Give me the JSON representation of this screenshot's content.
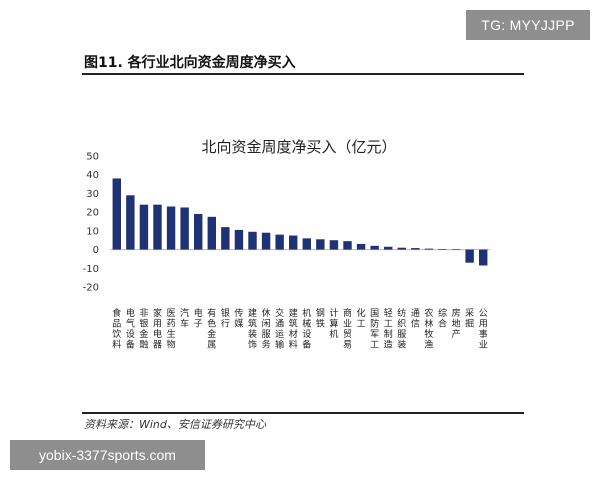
{
  "watermark_top": "TG: MYYJJPP",
  "figure_title": "图11. 各行业北向资金周度净买入",
  "source": "资料来源：Wind、安信证券研究中心",
  "watermark_bottom": "yobix-3377sports.com",
  "colors": {
    "bar": "#1f3374",
    "zero_line": "#bbbbbb"
  },
  "chart_data": {
    "type": "bar",
    "title": "北向资金周度净买入（亿元）",
    "xlabel": "",
    "ylabel": "",
    "ylim": [
      -20,
      50
    ],
    "yticks": [
      50,
      40,
      30,
      20,
      10,
      0,
      -10,
      -20
    ],
    "grid": false,
    "categories": [
      "食品饮料",
      "电气设备",
      "非银金融",
      "家用电器",
      "医药生物",
      "汽车",
      "电子",
      "有色金属",
      "银行",
      "传媒",
      "建筑装饰",
      "休闲服务",
      "交通运输",
      "建筑材料",
      "机械设备",
      "钢铁",
      "计算机",
      "商业贸易",
      "化工",
      "国防军工",
      "轻工制造",
      "纺织服装",
      "通信",
      "农林牧渔",
      "综合",
      "房地产",
      "采掘",
      "公用事业"
    ],
    "values": [
      38,
      29,
      24,
      24,
      23,
      22.5,
      19,
      17.5,
      12,
      10.5,
      9.5,
      9,
      8,
      7.5,
      6,
      5.5,
      5,
      4.5,
      3,
      2,
      1.5,
      1,
      0.8,
      0.5,
      0.2,
      0.1,
      -7,
      -8.5
    ]
  }
}
